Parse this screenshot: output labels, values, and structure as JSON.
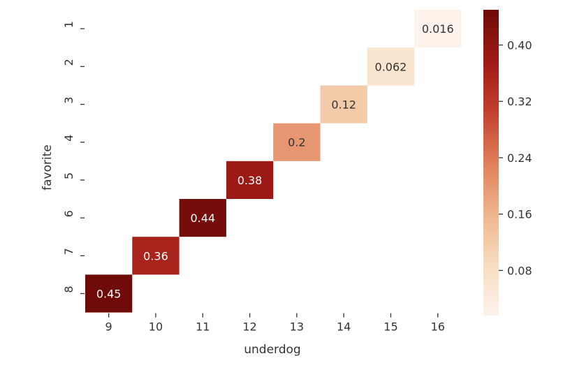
{
  "chart_data": {
    "type": "heatmap",
    "xlabel": "underdog",
    "ylabel": "favorite",
    "x_categories": [
      "9",
      "10",
      "11",
      "12",
      "13",
      "14",
      "15",
      "16"
    ],
    "y_categories": [
      "1",
      "2",
      "3",
      "4",
      "5",
      "6",
      "7",
      "8"
    ],
    "cells": [
      {
        "x": "16",
        "y": "1",
        "value": 0.016,
        "label": "0.016"
      },
      {
        "x": "15",
        "y": "2",
        "value": 0.062,
        "label": "0.062"
      },
      {
        "x": "14",
        "y": "3",
        "value": 0.12,
        "label": "0.12"
      },
      {
        "x": "13",
        "y": "4",
        "value": 0.2,
        "label": "0.2"
      },
      {
        "x": "12",
        "y": "5",
        "value": 0.38,
        "label": "0.38"
      },
      {
        "x": "11",
        "y": "6",
        "value": 0.44,
        "label": "0.44"
      },
      {
        "x": "10",
        "y": "7",
        "value": 0.36,
        "label": "0.36"
      },
      {
        "x": "9",
        "y": "8",
        "value": 0.45,
        "label": "0.45"
      }
    ],
    "colorbar": {
      "range": [
        0.016,
        0.45
      ],
      "ticks": [
        0.08,
        0.16,
        0.24,
        0.32,
        0.4
      ],
      "tick_labels": [
        "0.08",
        "0.16",
        "0.24",
        "0.32",
        "0.40"
      ],
      "colormap": "OrRd",
      "colors": [
        "#fdf3ea",
        "#f7dcc0",
        "#eeb58c",
        "#e07e5a",
        "#c2402e",
        "#9e1a15",
        "#6e0b08"
      ]
    },
    "grid": false
  }
}
